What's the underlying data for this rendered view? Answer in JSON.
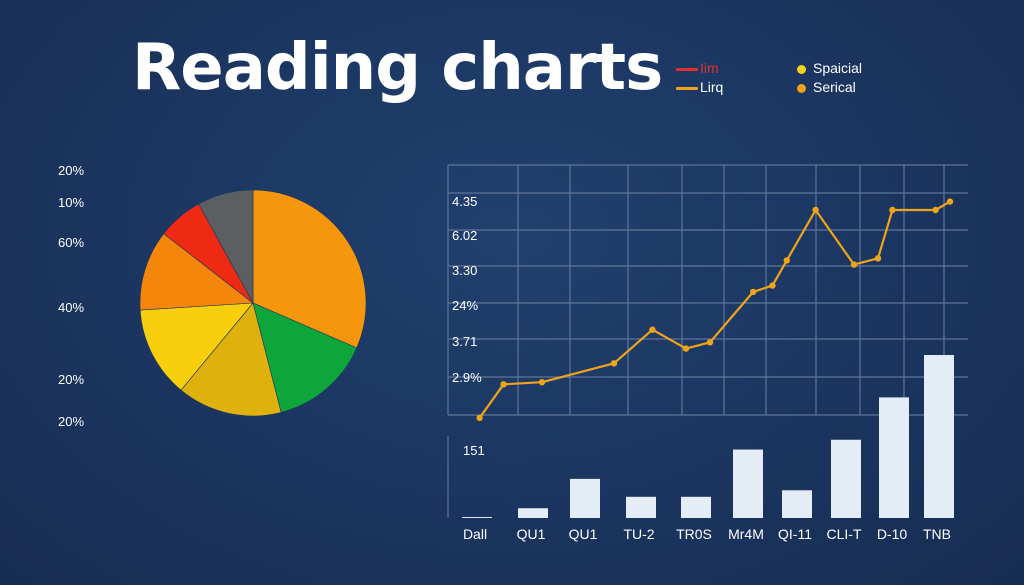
{
  "title": "Reading charts",
  "legend": {
    "lines": [
      {
        "label": "Iim",
        "color": "#e0322a"
      },
      {
        "label": "Lirq",
        "color": "#f2a11b"
      }
    ],
    "dots": [
      {
        "label": "Spaicial",
        "color": "#f4d316"
      },
      {
        "label": "Serical",
        "color": "#f2a11b"
      }
    ]
  },
  "chart_data": [
    {
      "type": "pie",
      "slice_labels": [
        "20%",
        "10%",
        "60%",
        "40%",
        "20%",
        "20%"
      ],
      "slices": [
        {
          "name": "orange-large",
          "value": 31.5,
          "color": "#f5960c"
        },
        {
          "name": "green",
          "value": 14.5,
          "color": "#0ea63b"
        },
        {
          "name": "mustard",
          "value": 15,
          "color": "#dfb10c"
        },
        {
          "name": "yellow",
          "value": 13,
          "color": "#f7cf0c"
        },
        {
          "name": "orange",
          "value": 11.5,
          "color": "#f5860c"
        },
        {
          "name": "red",
          "value": 6.5,
          "color": "#ef2a12"
        },
        {
          "name": "gray",
          "value": 8,
          "color": "#5c5f62"
        }
      ]
    },
    {
      "type": "line",
      "y_tick_labels": [
        "4.35",
        "6.02",
        "3.30",
        "24%",
        "3.71",
        "2.9%"
      ],
      "ylim": [
        0,
        100
      ],
      "xlim": [
        0,
        100
      ],
      "line_color": "#f0a419",
      "x": [
        2,
        7,
        15,
        30,
        38,
        45,
        50,
        59,
        63,
        66,
        72,
        80,
        85,
        88,
        97,
        100
      ],
      "values": [
        1,
        17,
        18,
        27,
        43,
        34,
        37,
        61,
        64,
        76,
        100,
        74,
        77,
        100,
        100,
        104
      ]
    },
    {
      "type": "bar",
      "top_label": "151",
      "categories": [
        "Dall",
        "QU1",
        "QU1",
        "TU-2",
        "TR0S",
        "Mr4M",
        "QI-11",
        "CLI-T",
        "D-10",
        "TNB"
      ],
      "values": [
        0.6,
        6,
        24,
        13,
        13,
        42,
        17,
        48,
        74,
        100
      ],
      "bar_color": "#e4ecf6",
      "ylim": [
        0,
        100
      ]
    }
  ]
}
